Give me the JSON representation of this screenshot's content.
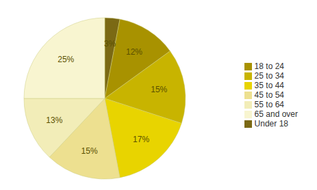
{
  "chart_data": {
    "type": "pie",
    "categories": [
      "Under 18",
      "18 to 24",
      "25 to 34",
      "35 to 44",
      "45 to 54",
      "55 to 64",
      "65 and over"
    ],
    "values": [
      3,
      12,
      15,
      17,
      15,
      13,
      25
    ],
    "value_labels": [
      "3%",
      "12%",
      "15%",
      "17%",
      "15%",
      "13%",
      "25%"
    ],
    "colors": [
      "#7B6914",
      "#A89200",
      "#C8B400",
      "#E8D400",
      "#EDE090",
      "#F2EDB8",
      "#F8F5D0"
    ],
    "data_labels": true,
    "legend": "right"
  }
}
